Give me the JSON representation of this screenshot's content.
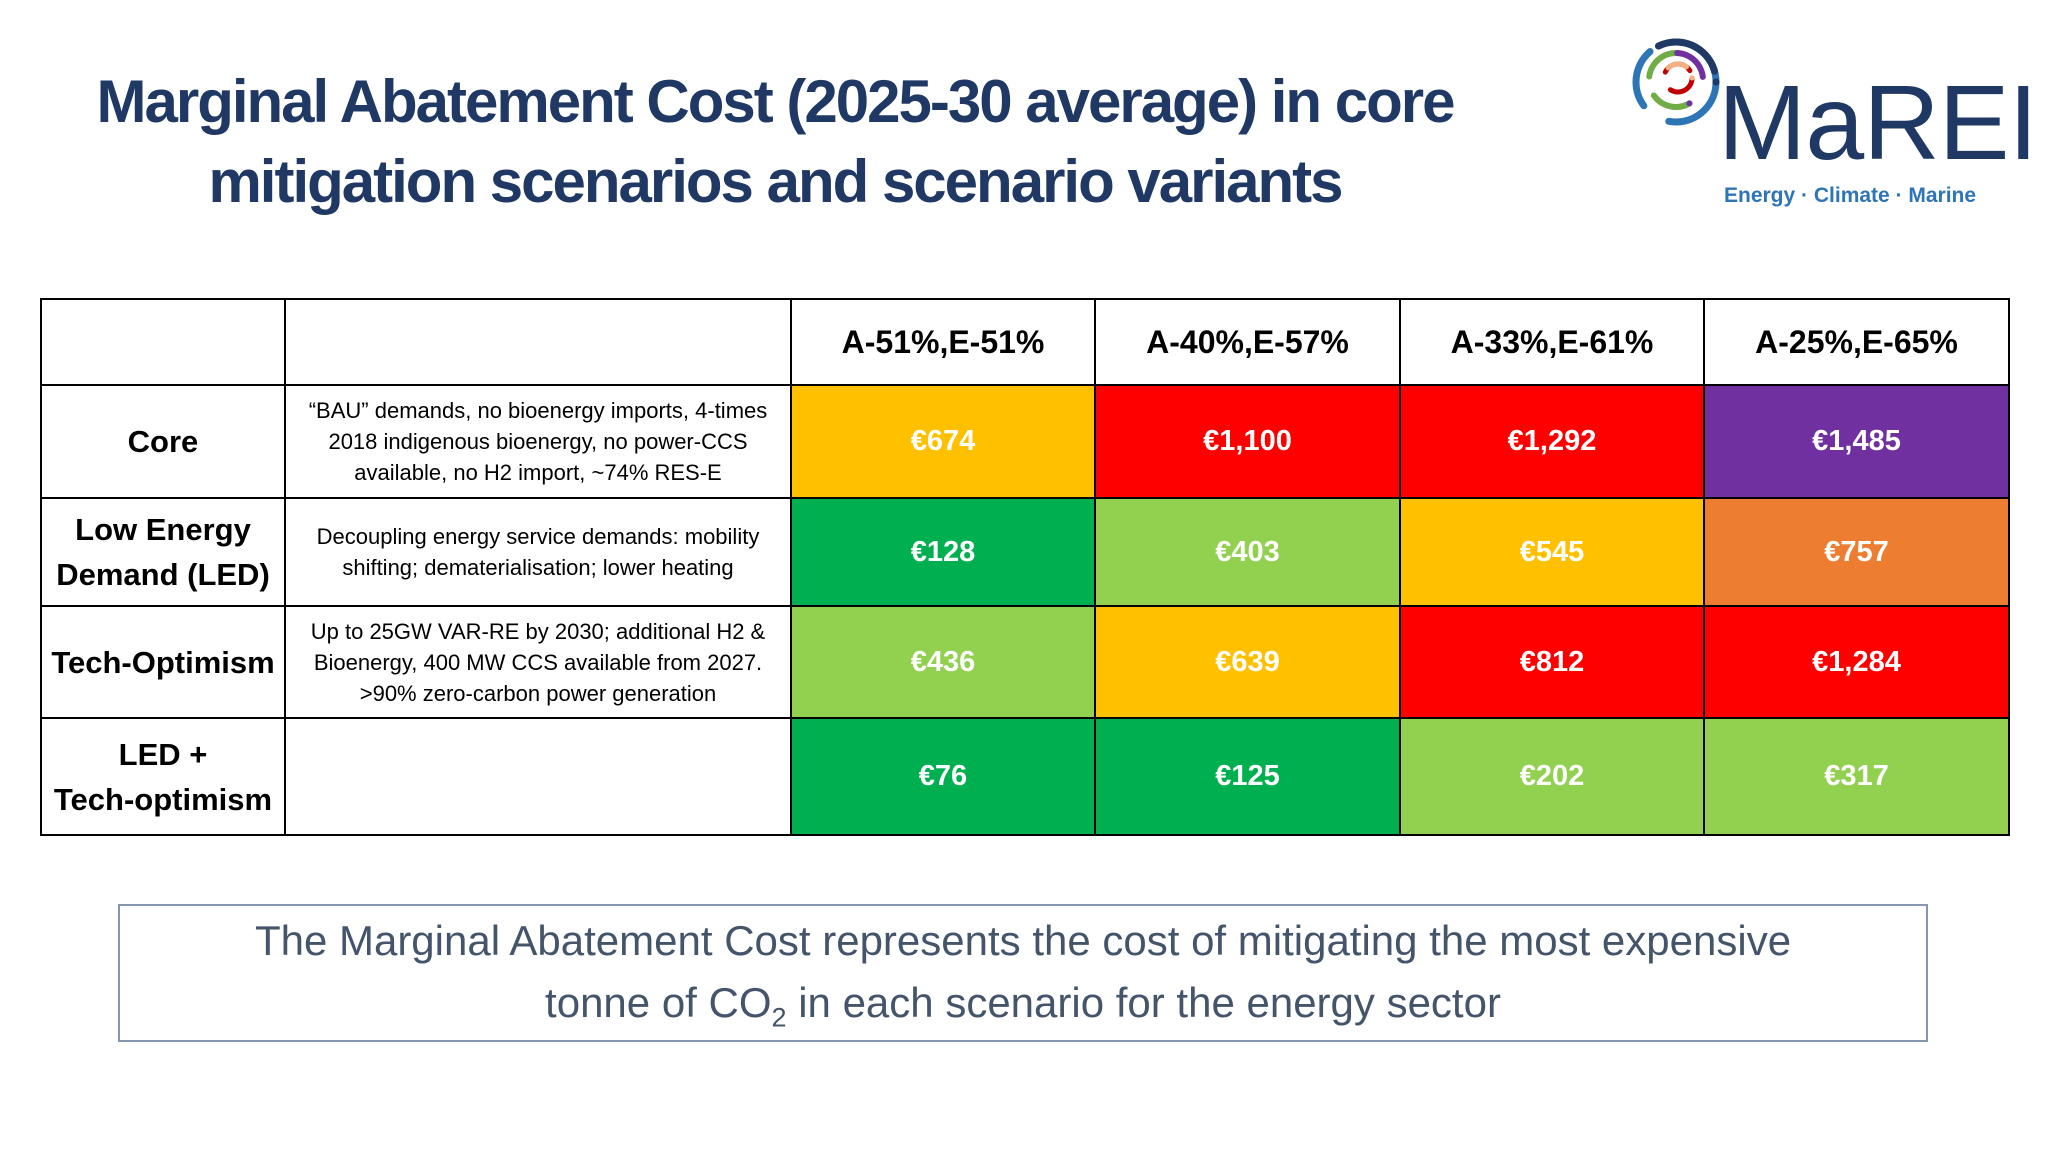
{
  "slide": {
    "title_line1": "Marginal Abatement Cost (2025-30 average) in core",
    "title_line2": "mitigation scenarios and scenario variants"
  },
  "logo": {
    "name": "MaREI",
    "tagline": "Energy · Climate · Marine",
    "icon": "marei-rings-icon",
    "colors": {
      "blue": "#2e75b6",
      "navy": "#1f3864",
      "purple": "#7030a0",
      "green": "#70ad47",
      "red": "#c00000",
      "orange": "#f4b183"
    }
  },
  "table": {
    "columns": [
      "A-51%,E-51%",
      "A-40%,E-57%",
      "A-33%,E-61%",
      "A-25%,E-65%"
    ],
    "rows": [
      {
        "name_line1": "Core",
        "name_line2": "",
        "desc_line1": "“BAU” demands, no bioenergy imports, 4-times",
        "desc_line2": "2018 indigenous bioenergy, no power-CCS",
        "desc_line3": "available, no H2 import, ~74% RES-E",
        "values": [
          "€674",
          "€1,100",
          "€1,292",
          "€1,485"
        ],
        "colors": [
          "#ffc000",
          "#ff0000",
          "#ff0000",
          "#7030a0"
        ]
      },
      {
        "name_line1": "Low Energy",
        "name_line2": "Demand (LED)",
        "desc_line1": "Decoupling energy service demands: mobility",
        "desc_line2": "shifting; dematerialisation; lower heating",
        "desc_line3": "",
        "values": [
          "€128",
          "€403",
          "€545",
          "€757"
        ],
        "colors": [
          "#00b050",
          "#92d050",
          "#ffc000",
          "#ed7d31"
        ]
      },
      {
        "name_line1": "Tech-Optimism",
        "name_line2": "",
        "desc_line1": "Up to 25GW VAR-RE by 2030; additional H2 &",
        "desc_line2": "Bioenergy, 400 MW CCS available from 2027.",
        "desc_line3": ">90% zero-carbon power generation",
        "values": [
          "€436",
          "€639",
          "€812",
          "€1,284"
        ],
        "colors": [
          "#92d050",
          "#ffc000",
          "#ff0000",
          "#ff0000"
        ]
      },
      {
        "name_line1": "LED +",
        "name_line2": "Tech-optimism",
        "desc_line1": "",
        "desc_line2": "",
        "desc_line3": "",
        "values": [
          "€76",
          "€125",
          "€202",
          "€317"
        ],
        "colors": [
          "#00b050",
          "#00b050",
          "#92d050",
          "#92d050"
        ]
      }
    ]
  },
  "note": {
    "line1": "The Marginal Abatement Cost represents the cost of mitigating the most expensive",
    "line2_pre": "tonne of CO",
    "line2_sub": "2",
    "line2_post": " in each scenario for the energy sector"
  }
}
